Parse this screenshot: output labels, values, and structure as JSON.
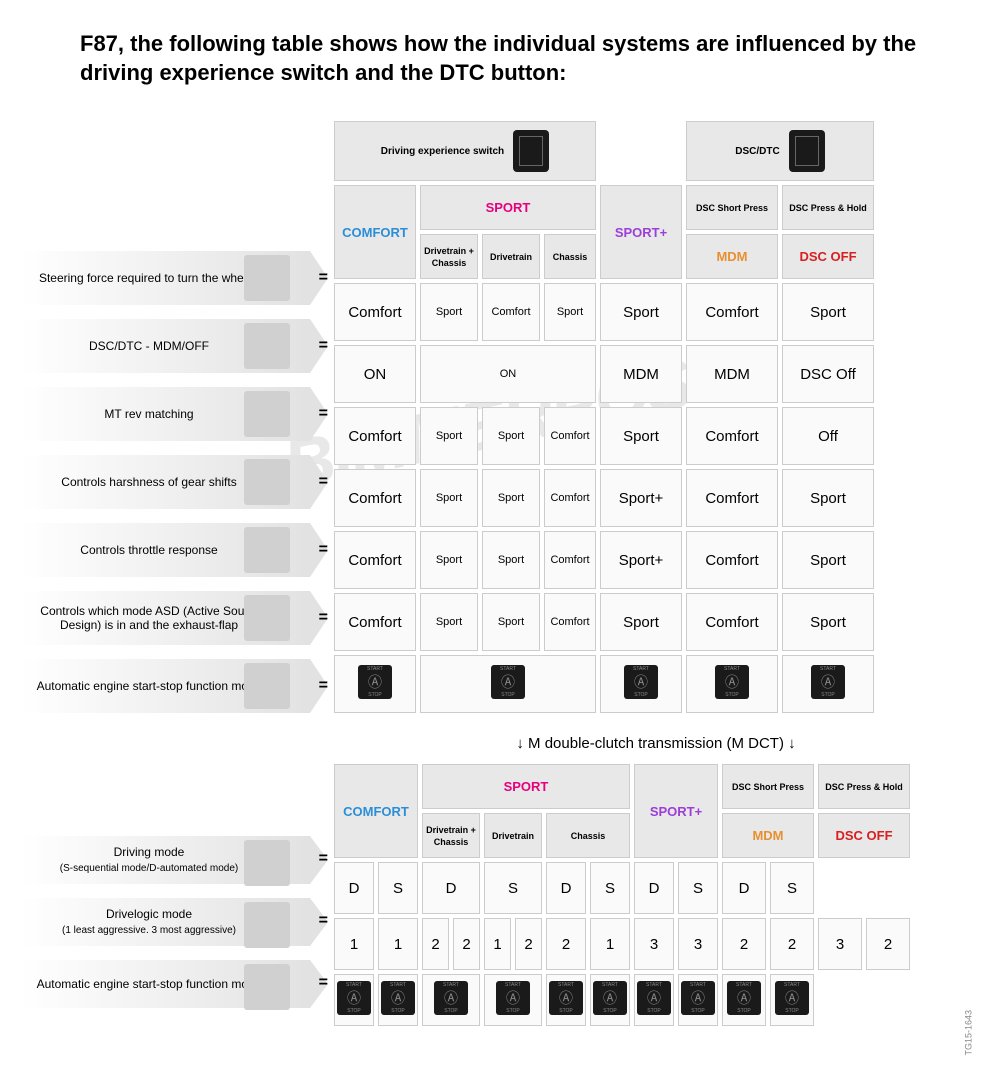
{
  "title": "F87, the following table shows how the individual systems are influenced by the driving experience switch and the DTC button:",
  "watermark": "BIMMERPOST",
  "sideCode": "TG15-1643",
  "headerGroups": {
    "drivingExp": "Driving experience switch",
    "dscDtc": "DSC/DTC"
  },
  "columnHeaders": {
    "comfort": "COMFORT",
    "sport": "SPORT",
    "sportSub1": "Drivetrain + Chassis",
    "sportSub2": "Drivetrain",
    "sportSub3": "Chassis",
    "sportPlus": "SPORT+",
    "dscShort": "DSC Short Press",
    "mdm": "MDM",
    "dscHold": "DSC Press & Hold",
    "dscOff": "DSC OFF"
  },
  "rows1": [
    {
      "label": "Steering force required to turn the wheels",
      "cells": [
        "Comfort",
        "Sport",
        "Comfort",
        "Sport",
        "Sport",
        "Comfort",
        "Sport"
      ]
    },
    {
      "label": "DSC/DTC - MDM/OFF",
      "cells": [
        "ON",
        "ON",
        "",
        "",
        "MDM",
        "MDM",
        "DSC Off"
      ],
      "merge1_3": true
    },
    {
      "label": "MT rev matching",
      "cells": [
        "Comfort",
        "Sport",
        "Sport",
        "Comfort",
        "Sport",
        "Comfort",
        "Off"
      ]
    },
    {
      "label": "Controls harshness of gear shifts",
      "cells": [
        "Comfort",
        "Sport",
        "Sport",
        "Comfort",
        "Sport+",
        "Comfort",
        "Sport"
      ]
    },
    {
      "label": "Controls throttle response",
      "cells": [
        "Comfort",
        "Sport",
        "Sport",
        "Comfort",
        "Sport+",
        "Comfort",
        "Sport"
      ]
    },
    {
      "label": "Controls which mode ASD (Active Sound Design) is in and the exhaust-flap",
      "cells": [
        "Comfort",
        "Sport",
        "Sport",
        "Comfort",
        "Sport",
        "Comfort",
        "Sport"
      ]
    },
    {
      "label": "Automatic engine start-stop function mode",
      "cells": [
        "icon",
        "icon",
        "",
        "",
        "icon",
        "icon",
        "icon"
      ],
      "merge1_3": true,
      "iconRow": true
    }
  ],
  "sectionLabel": "↓ M double-clutch transmission (M DCT) ↓",
  "rows2": [
    {
      "label": "Driving mode",
      "sub": "(S-sequential mode/D-automated mode)",
      "cells": [
        "D",
        "S",
        "D",
        "",
        "S",
        "",
        "D",
        "S",
        "D",
        "S",
        "D",
        "S"
      ],
      "merge_a": true,
      "merge_b": true
    },
    {
      "label": "Drivelogic mode",
      "sub": "(1 least aggressive. 3 most aggressive)",
      "cells": [
        "1",
        "1",
        "2",
        "2",
        "1",
        "2",
        "2",
        "1",
        "3",
        "3",
        "2",
        "2",
        "3",
        "2"
      ]
    },
    {
      "label": "Automatic engine start-stop function mode",
      "cells": [
        "i",
        "i",
        "i",
        "",
        "i",
        "",
        "i",
        "i",
        "i",
        "i",
        "i",
        "i"
      ],
      "merge_a": true,
      "merge_b": true,
      "iconRow": true
    }
  ],
  "stopIcon": {
    "top": "START",
    "bot": "STOP"
  }
}
